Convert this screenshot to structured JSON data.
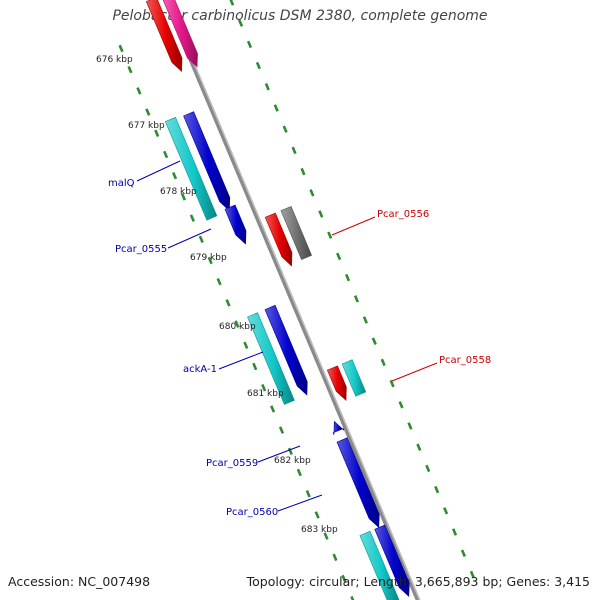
{
  "title": "Pelobacter carbinolicus DSM 2380, complete genome",
  "footer": {
    "accession": "Accession: NC_007498",
    "summary": "Topology: circular; Length: 3,665,893 bp; Genes: 3,415"
  },
  "colors": {
    "backbone": "#8a8a8a",
    "tick": "#2e8b2e",
    "blue": "#0000cc",
    "cyan": "#11c8c8",
    "red": "#e60000",
    "pink": "#e8168a",
    "gray": "#6e6e6e",
    "label_left": "#0000aa",
    "label_right": "#cc0000"
  },
  "kbp_markers": [
    "676 kbp",
    "677 kbp",
    "678 kbp",
    "679 kbp",
    "680 kbp",
    "681 kbp",
    "682 kbp",
    "683 kbp"
  ],
  "gene_labels": {
    "left": [
      "malQ",
      "Pcar_0555",
      "ackA-1",
      "Pcar_0559",
      "Pcar_0560"
    ],
    "right": [
      "Pcar_0556",
      "Pcar_0558"
    ]
  }
}
